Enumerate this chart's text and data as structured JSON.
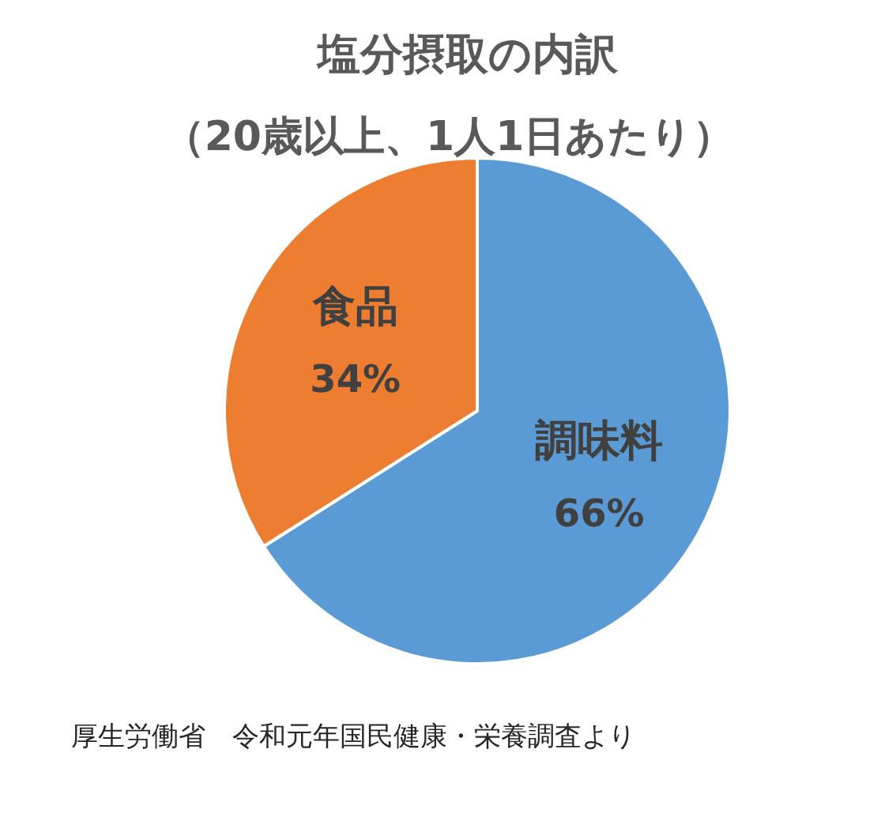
{
  "chart_data": {
    "type": "pie",
    "title": "塩分摂取の内訳",
    "subtitle": "（20歳以上、1人1日あたり）",
    "categories": [
      "調味料",
      "食品"
    ],
    "values": [
      66,
      34
    ],
    "colors": [
      "#5b9bd5",
      "#ed7d31"
    ],
    "value_labels": [
      "66%",
      "34%"
    ],
    "annotations": [
      "厚生労働省　令和元年国民健康・栄養調査より"
    ]
  }
}
